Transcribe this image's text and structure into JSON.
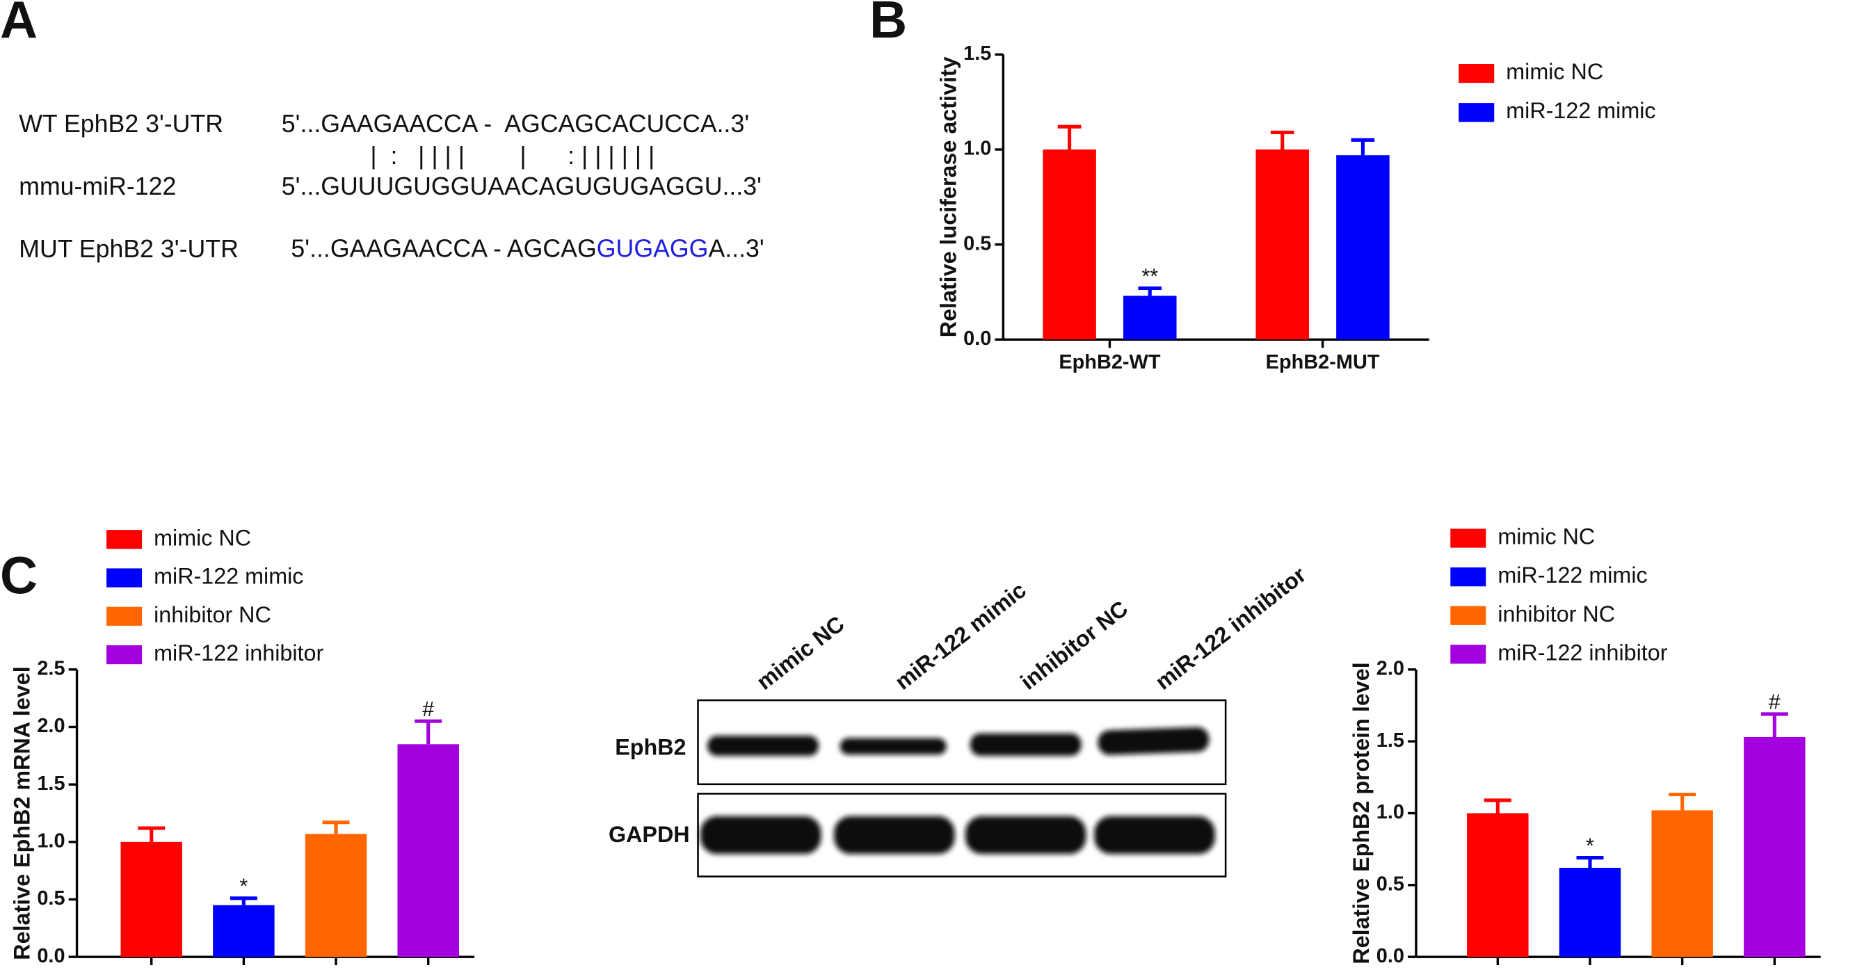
{
  "panels": {
    "a": "A",
    "b": "B",
    "c": "C"
  },
  "sequence_alignment": {
    "wt": {
      "label": "WT EphB2 3'-UTR",
      "sequence": "5'...GAAGAACCA -  AGCAGCACUCCA..3'"
    },
    "pairing": "|  :   | | | |        |      : | | | | | |",
    "mirna": {
      "label": "mmu-miR-122",
      "sequence": "5'...GUUUGUGGUAACAGUGUGAGGU...3'"
    },
    "mut": {
      "label": "MUT EphB2 3'-UTR",
      "prefix": "5'...GAAGAACCA - AGCAG",
      "mutated": "GUGAGG",
      "suffix": "A...3'",
      "mutated_color": "#1e1ee0"
    }
  },
  "blot": {
    "lanes": [
      "mimic NC",
      "miR-122 mimic",
      "inhibitor NC",
      "miR-122 inhibitor"
    ],
    "rows": [
      "EphB2",
      "GAPDH"
    ]
  },
  "chart_data": [
    {
      "type": "bar",
      "ylabel": "Relative luciferase activity",
      "categories": [
        "EphB2-WT",
        "EphB2-MUT"
      ],
      "series": [
        {
          "name": "mimic NC",
          "color": "#ff0000",
          "values": [
            1.0,
            1.0
          ],
          "errors": [
            0.12,
            0.09
          ],
          "annotations": [
            null,
            null
          ]
        },
        {
          "name": "miR-122 mimic",
          "color": "#0000ff",
          "values": [
            0.23,
            0.97
          ],
          "errors": [
            0.04,
            0.08
          ],
          "annotations": [
            "**",
            null
          ]
        }
      ],
      "ylim": [
        0,
        1.5
      ],
      "yticks": [
        {
          "value": 0,
          "label": "0.0"
        },
        0.5,
        {
          "value": 1,
          "label": "1.0"
        },
        1.5
      ]
    },
    {
      "type": "bar",
      "ylabel": "Relative EphB2 mRNA level",
      "categories": [
        null,
        null,
        null,
        null
      ],
      "series": [
        {
          "name": "mimic NC",
          "color": "#ff0000",
          "values": [
            1.0,
            null,
            null,
            null
          ],
          "errors": [
            0.12,
            null,
            null,
            null
          ],
          "annotations": [
            null,
            null,
            null,
            null
          ]
        },
        {
          "name": "miR-122 mimic",
          "color": "#0000ff",
          "values": [
            null,
            0.45,
            null,
            null
          ],
          "errors": [
            null,
            0.06,
            null,
            null
          ],
          "annotations": [
            null,
            "*",
            null,
            null
          ]
        },
        {
          "name": "inhibitor NC",
          "color": "#ff6600",
          "values": [
            null,
            null,
            1.07,
            null
          ],
          "errors": [
            null,
            null,
            0.1,
            null
          ],
          "annotations": [
            null,
            null,
            null,
            null
          ]
        },
        {
          "name": "miR-122 inhibitor",
          "color": "#a300e0",
          "values": [
            null,
            null,
            null,
            1.85
          ],
          "errors": [
            null,
            null,
            null,
            0.2
          ],
          "annotations": [
            null,
            null,
            null,
            "#"
          ]
        }
      ],
      "ylim": [
        0,
        2.5
      ],
      "yticks": [
        {
          "value": 0,
          "label": "0.0"
        },
        0.5,
        {
          "value": 1,
          "label": "1.0"
        },
        1.5,
        {
          "value": 2,
          "label": "2.0"
        },
        2.5
      ]
    },
    {
      "type": "bar",
      "ylabel": "Relative EphB2 protein level",
      "categories": [
        null,
        null,
        null,
        null
      ],
      "series": [
        {
          "name": "mimic NC",
          "color": "#ff0000",
          "values": [
            1.0,
            null,
            null,
            null
          ],
          "errors": [
            0.09,
            null,
            null,
            null
          ],
          "annotations": [
            null,
            null,
            null,
            null
          ]
        },
        {
          "name": "miR-122 mimic",
          "color": "#0000ff",
          "values": [
            null,
            0.62,
            null,
            null
          ],
          "errors": [
            null,
            0.07,
            null,
            null
          ],
          "annotations": [
            null,
            "*",
            null,
            null
          ]
        },
        {
          "name": "inhibitor NC",
          "color": "#ff6600",
          "values": [
            null,
            null,
            1.02,
            null
          ],
          "errors": [
            null,
            null,
            0.11,
            null
          ],
          "annotations": [
            null,
            null,
            null,
            null
          ]
        },
        {
          "name": "miR-122 inhibitor",
          "color": "#a300e0",
          "values": [
            null,
            null,
            null,
            1.53
          ],
          "errors": [
            null,
            null,
            null,
            0.16
          ],
          "annotations": [
            null,
            null,
            null,
            "#"
          ]
        }
      ],
      "ylim": [
        0,
        2.0
      ],
      "yticks": [
        {
          "value": 0,
          "label": "0.0"
        },
        0.5,
        {
          "value": 1,
          "label": "1.0"
        },
        1.5,
        {
          "value": 2,
          "label": "2.0"
        }
      ]
    }
  ]
}
